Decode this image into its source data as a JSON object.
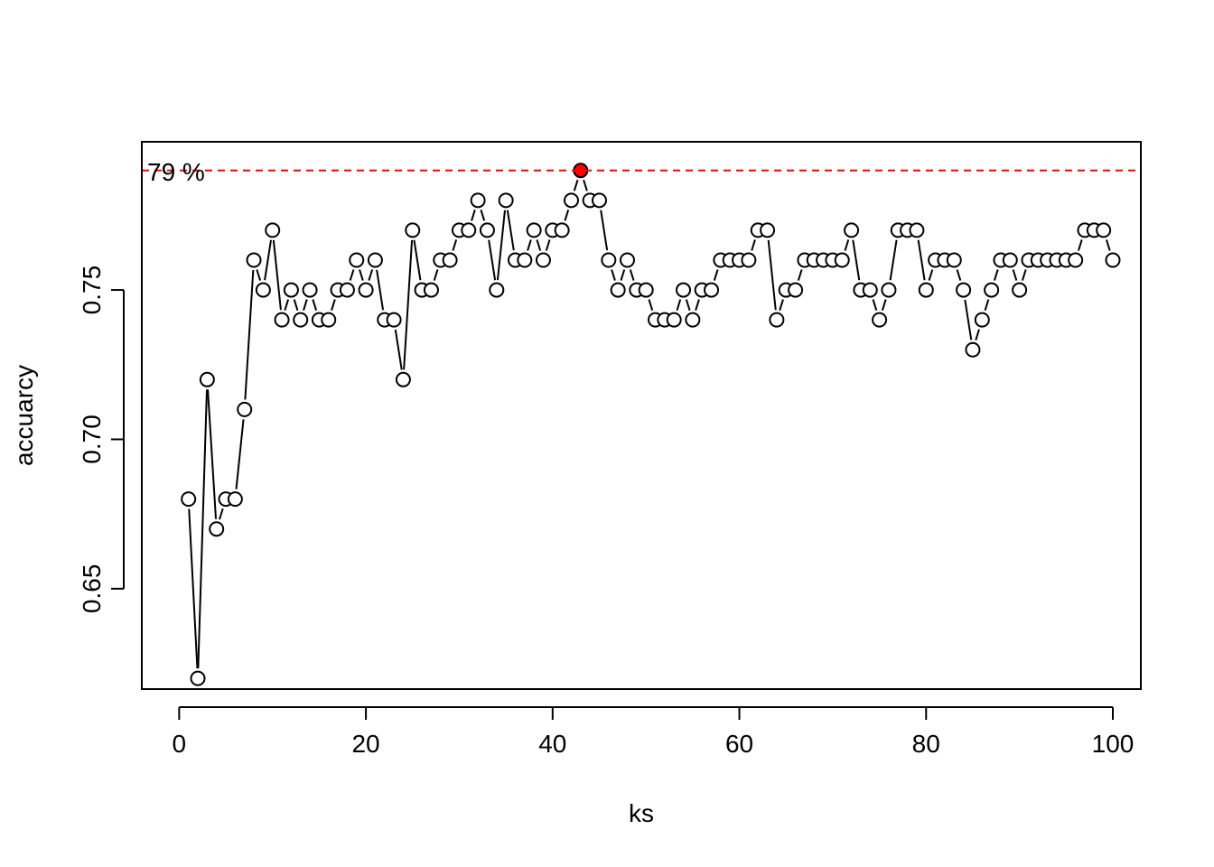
{
  "chart_data": {
    "type": "line",
    "title": "",
    "xlabel": "ks",
    "ylabel": "accuarcy",
    "xlim": [
      -4,
      103
    ],
    "ylim": [
      0.6164,
      0.7996
    ],
    "xticks": [
      0,
      20,
      40,
      60,
      80,
      100
    ],
    "yticks": [
      0.65,
      0.7,
      0.75
    ],
    "ytick_labels": [
      "0.65",
      "0.70",
      "0.75"
    ],
    "grid": false,
    "series": [
      {
        "x": [
          1,
          2,
          3,
          4,
          5,
          6,
          7,
          8,
          9,
          10,
          11,
          12,
          13,
          14,
          15,
          16,
          17,
          18,
          19,
          20,
          21,
          22,
          23,
          24,
          25,
          26,
          27,
          28,
          29,
          30,
          31,
          32,
          33,
          34,
          35,
          36,
          37,
          38,
          39,
          40,
          41,
          42,
          43,
          44,
          45,
          46,
          47,
          48,
          49,
          50,
          51,
          52,
          53,
          54,
          55,
          56,
          57,
          58,
          59,
          60,
          61,
          62,
          63,
          64,
          65,
          66,
          67,
          68,
          69,
          70,
          71,
          72,
          73,
          74,
          75,
          76,
          77,
          78,
          79,
          80,
          81,
          82,
          83,
          84,
          85,
          86,
          87,
          88,
          89,
          90,
          91,
          92,
          93,
          94,
          95,
          96,
          97,
          98,
          99,
          100
        ],
        "values": [
          0.68,
          0.62,
          0.72,
          0.67,
          0.68,
          0.68,
          0.71,
          0.76,
          0.75,
          0.77,
          0.74,
          0.75,
          0.74,
          0.75,
          0.74,
          0.74,
          0.75,
          0.75,
          0.76,
          0.75,
          0.76,
          0.74,
          0.74,
          0.72,
          0.77,
          0.75,
          0.75,
          0.76,
          0.76,
          0.77,
          0.77,
          0.78,
          0.77,
          0.75,
          0.78,
          0.76,
          0.76,
          0.77,
          0.76,
          0.77,
          0.77,
          0.78,
          0.79,
          0.78,
          0.78,
          0.76,
          0.75,
          0.76,
          0.75,
          0.75,
          0.74,
          0.74,
          0.74,
          0.75,
          0.74,
          0.75,
          0.75,
          0.76,
          0.76,
          0.76,
          0.76,
          0.77,
          0.77,
          0.74,
          0.75,
          0.75,
          0.76,
          0.76,
          0.76,
          0.76,
          0.76,
          0.77,
          0.75,
          0.75,
          0.74,
          0.75,
          0.77,
          0.77,
          0.77,
          0.75,
          0.76,
          0.76,
          0.76,
          0.75,
          0.73,
          0.74,
          0.75,
          0.76,
          0.76,
          0.75,
          0.76,
          0.76,
          0.76,
          0.76,
          0.76,
          0.76,
          0.77,
          0.77,
          0.77,
          0.76
        ]
      }
    ],
    "highlight": {
      "x": 43,
      "y": 0.79,
      "color": "#ff0000"
    },
    "hline": {
      "y": 0.79,
      "color": "#ff0000",
      "style": "dashed"
    },
    "annotation": "79 %"
  }
}
